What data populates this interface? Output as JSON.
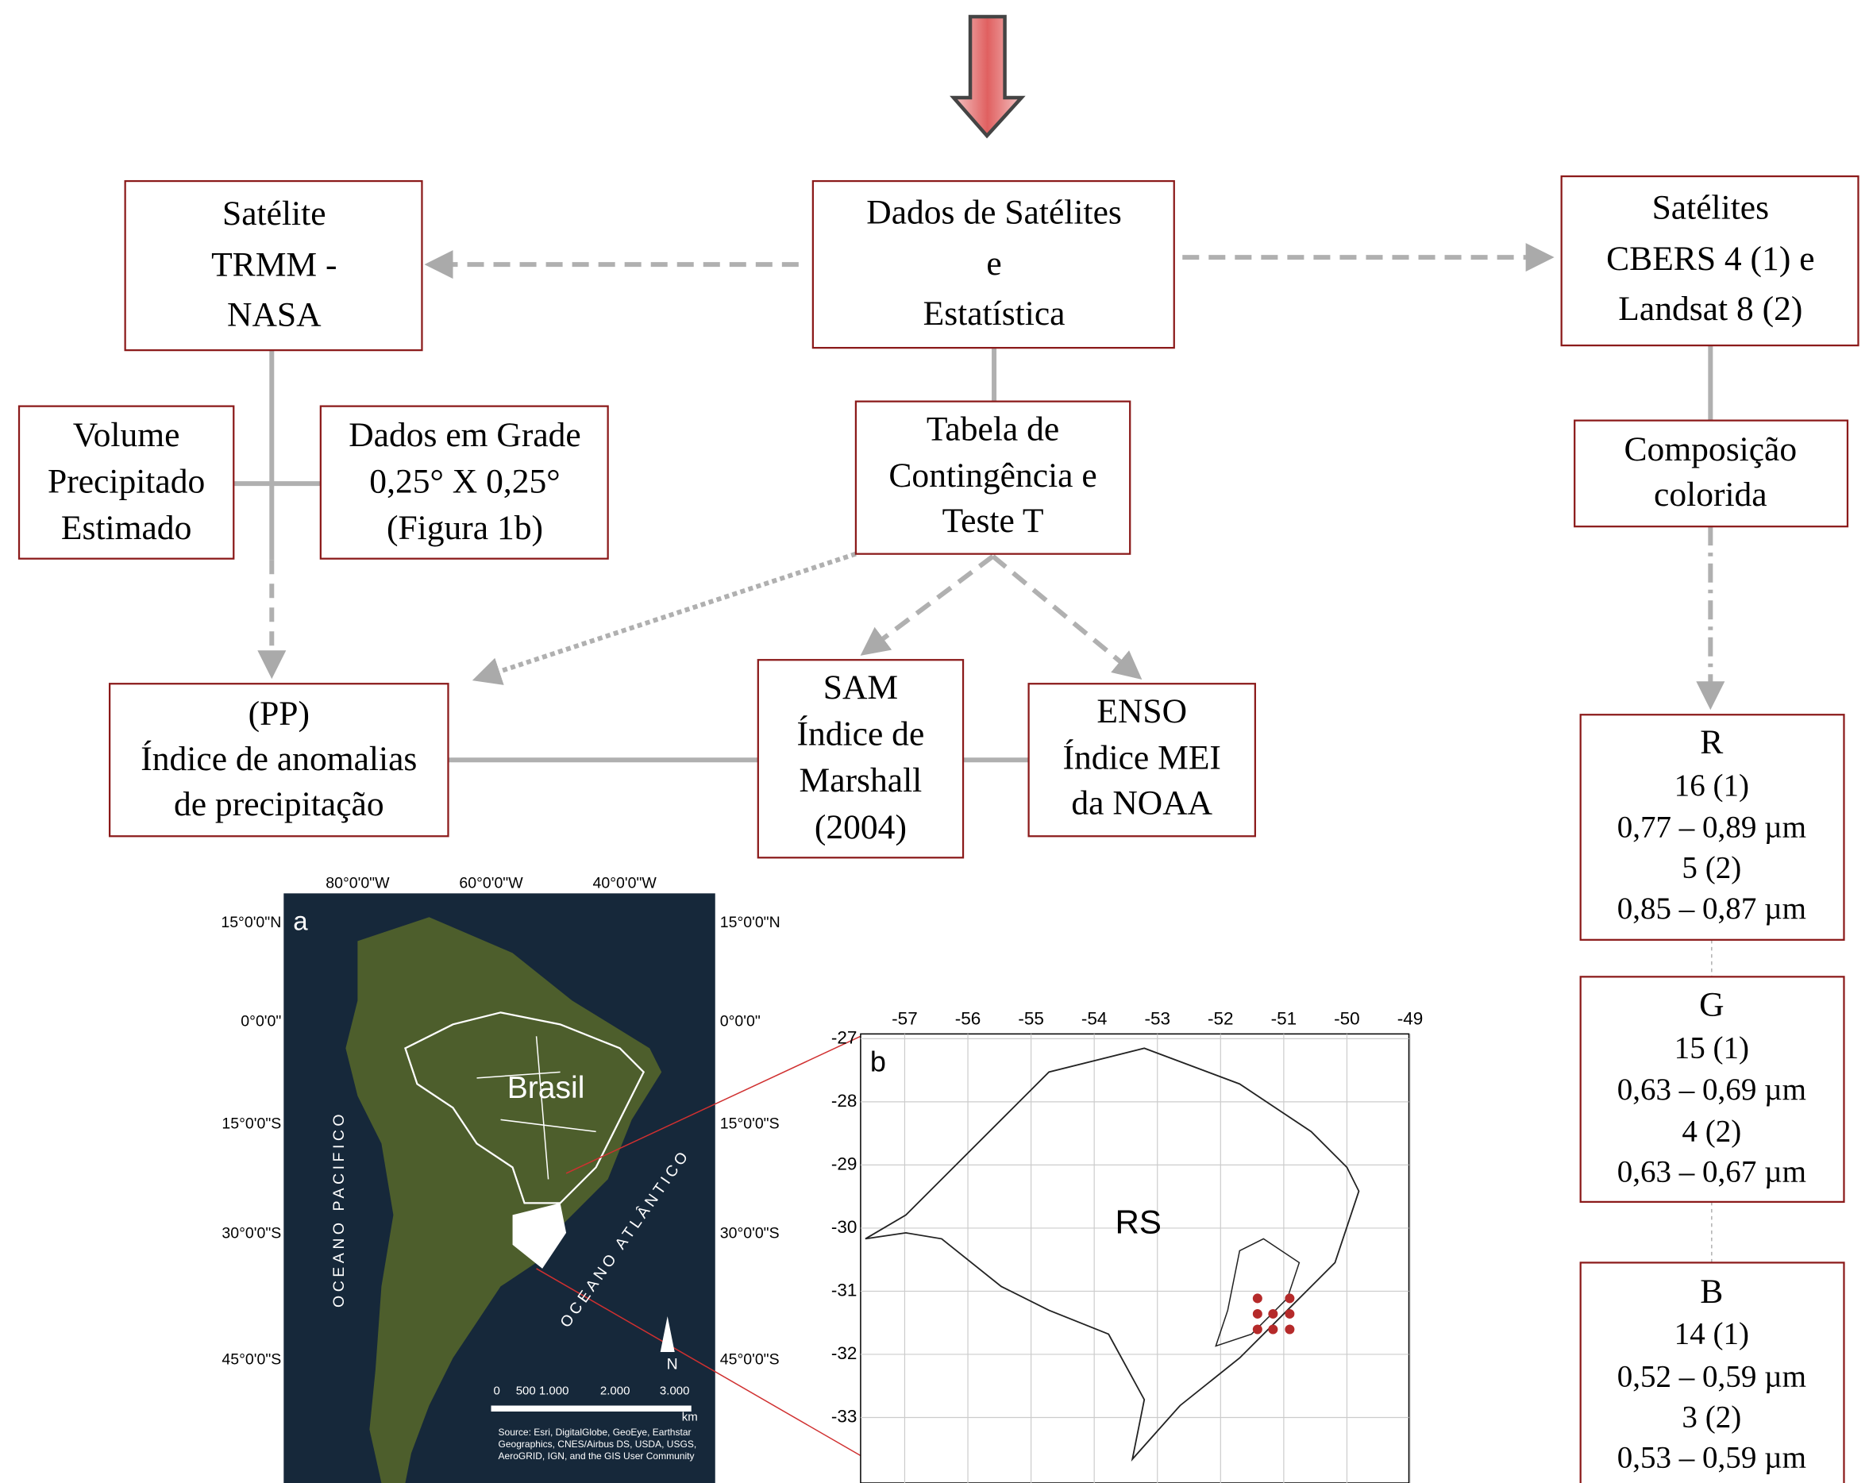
{
  "nodes": [
    {
      "lines": [
        "Satélite",
        "TRMM -",
        "NASA"
      ]
    },
    {
      "lines": [
        "Dados de Satélites",
        "e",
        "Estatística"
      ]
    },
    {
      "lines": [
        "Satélites",
        "CBERS 4 (1) e",
        "Landsat 8 (2)"
      ]
    },
    {
      "lines": [
        "Volume",
        "Precipitado",
        "Estimado"
      ]
    },
    {
      "lines": [
        "Dados em Grade",
        "0,25° X 0,25°",
        "(Figura  1b)"
      ]
    },
    {
      "lines": [
        "Tabela de",
        "Contingência e",
        "Teste T"
      ]
    },
    {
      "lines": [
        "Composição",
        "colorida"
      ]
    },
    {
      "lines": [
        "(PP)",
        "Índice de anomalias",
        "de precipitação"
      ]
    },
    {
      "lines": [
        "SAM",
        "Índice de",
        "Marshall",
        "(2004)"
      ]
    },
    {
      "lines": [
        "ENSO",
        "Índice MEI",
        "da NOAA"
      ]
    },
    {
      "lines": [
        "R",
        "16 (1)",
        "0,77 – 0,89 µm",
        "5 (2)",
        "0,85 – 0,87 µm"
      ]
    },
    {
      "lines": [
        "G",
        "15 (1)",
        "0,63 – 0,69 µm",
        "4 (2)",
        "0,63 – 0,67 µm"
      ]
    },
    {
      "lines": [
        "B",
        "14 (1)",
        "0,52 – 0,59 µm",
        "3 (2)",
        "0,53 – 0,59 µm"
      ]
    }
  ],
  "map_a": {
    "panel_label": "a",
    "top_ticks": [
      "80°0'0\"W",
      "60°0'0\"W",
      "40°0'0\"W"
    ],
    "side_ticks": [
      "15°0'0\"N",
      "0°0'0\"",
      "15°0'0\"S",
      "30°0'0\"S",
      "45°0'0\"S"
    ],
    "country": "Brasil",
    "ocean_west": "OCEANO PACIFICO",
    "ocean_east": "OCEANO ATLÂNTICO",
    "north": "N",
    "scale_labels": [
      "0",
      "500 1.000",
      "2.000",
      "3.000",
      "km"
    ],
    "source": "Source: Esri, DigitalGlobe, GeoEye, Earthstar Geographics, CNES/Airbus DS, USDA, USGS, AeroGRID, IGN, and the GIS User Community"
  },
  "map_b": {
    "panel_label": "b",
    "x_ticks": [
      "-57",
      "-56",
      "-55",
      "-54",
      "-53",
      "-52",
      "-51",
      "-50",
      "-49"
    ],
    "y_ticks": [
      "-27",
      "-28",
      "-29",
      "-30",
      "-31",
      "-32",
      "-33"
    ],
    "region": "RS"
  }
}
